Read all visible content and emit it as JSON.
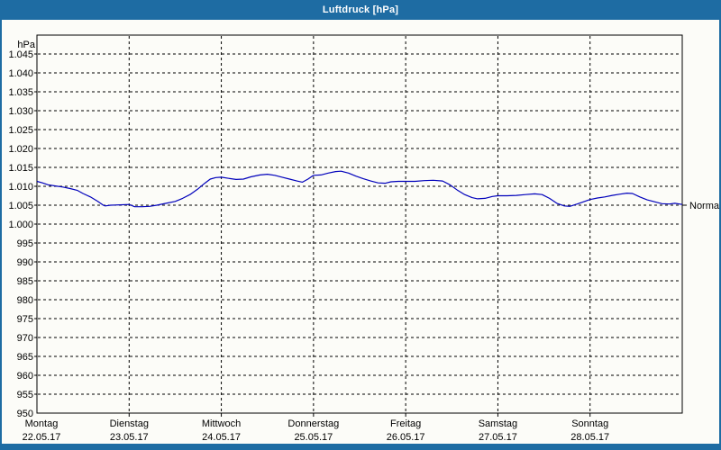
{
  "window": {
    "title": "Luftdruck [hPa]",
    "titlebar_color": "#1e6ca3",
    "border_color": "#1e6ca3",
    "content_background": "#fcfcf8"
  },
  "chart_data": {
    "type": "line",
    "title": "Luftdruck [hPa]",
    "unit_label": "hPa",
    "grid": "dashed",
    "ylim": [
      950,
      1050
    ],
    "ytick_step": 5,
    "yticks": [
      {
        "v": 1045,
        "label": "1.045"
      },
      {
        "v": 1040,
        "label": "1.040"
      },
      {
        "v": 1035,
        "label": "1.035"
      },
      {
        "v": 1030,
        "label": "1.030"
      },
      {
        "v": 1025,
        "label": "1.025"
      },
      {
        "v": 1020,
        "label": "1.020"
      },
      {
        "v": 1015,
        "label": "1.015"
      },
      {
        "v": 1010,
        "label": "1.010"
      },
      {
        "v": 1005,
        "label": "1.005"
      },
      {
        "v": 1000,
        "label": "1.000"
      },
      {
        "v": 995,
        "label": "995"
      },
      {
        "v": 990,
        "label": "990"
      },
      {
        "v": 985,
        "label": "985"
      },
      {
        "v": 980,
        "label": "980"
      },
      {
        "v": 975,
        "label": "975"
      },
      {
        "v": 970,
        "label": "970"
      },
      {
        "v": 965,
        "label": "965"
      },
      {
        "v": 960,
        "label": "960"
      },
      {
        "v": 955,
        "label": "955"
      },
      {
        "v": 950,
        "label": "950"
      }
    ],
    "x_days": [
      {
        "weekday": "Montag",
        "date": "22.05.17"
      },
      {
        "weekday": "Dienstag",
        "date": "23.05.17"
      },
      {
        "weekday": "Mittwoch",
        "date": "24.05.17"
      },
      {
        "weekday": "Donnerstag",
        "date": "25.05.17"
      },
      {
        "weekday": "Freitag",
        "date": "26.05.17"
      },
      {
        "weekday": "Samstag",
        "date": "27.05.17"
      },
      {
        "weekday": "Sonntag",
        "date": "28.05.17"
      }
    ],
    "annotation": {
      "label": "Normal",
      "value": 1005
    },
    "series": [
      {
        "name": "Luftdruck",
        "color": "#0000bb",
        "points": [
          [
            0.0,
            1011.3
          ],
          [
            0.06,
            1010.9
          ],
          [
            0.12,
            1010.4
          ],
          [
            0.2,
            1010.1
          ],
          [
            0.28,
            1009.8
          ],
          [
            0.36,
            1009.4
          ],
          [
            0.44,
            1008.9
          ],
          [
            0.5,
            1008.1
          ],
          [
            0.58,
            1007.2
          ],
          [
            0.66,
            1006.0
          ],
          [
            0.72,
            1005.0
          ],
          [
            0.74,
            1004.8
          ],
          [
            0.8,
            1005.0
          ],
          [
            0.9,
            1005.1
          ],
          [
            1.0,
            1005.2
          ],
          [
            1.06,
            1004.6
          ],
          [
            1.14,
            1004.6
          ],
          [
            1.22,
            1004.7
          ],
          [
            1.3,
            1005.0
          ],
          [
            1.4,
            1005.5
          ],
          [
            1.5,
            1006.0
          ],
          [
            1.58,
            1006.8
          ],
          [
            1.66,
            1007.8
          ],
          [
            1.74,
            1009.2
          ],
          [
            1.82,
            1010.8
          ],
          [
            1.88,
            1011.9
          ],
          [
            1.94,
            1012.3
          ],
          [
            2.0,
            1012.4
          ],
          [
            2.08,
            1012.1
          ],
          [
            2.16,
            1011.8
          ],
          [
            2.24,
            1011.9
          ],
          [
            2.32,
            1012.5
          ],
          [
            2.42,
            1013.0
          ],
          [
            2.5,
            1013.2
          ],
          [
            2.58,
            1012.9
          ],
          [
            2.66,
            1012.4
          ],
          [
            2.74,
            1011.9
          ],
          [
            2.82,
            1011.4
          ],
          [
            2.88,
            1011.1
          ],
          [
            2.94,
            1011.9
          ],
          [
            3.0,
            1012.9
          ],
          [
            3.08,
            1013.0
          ],
          [
            3.16,
            1013.5
          ],
          [
            3.24,
            1013.9
          ],
          [
            3.3,
            1014.0
          ],
          [
            3.38,
            1013.5
          ],
          [
            3.46,
            1012.7
          ],
          [
            3.54,
            1012.0
          ],
          [
            3.62,
            1011.4
          ],
          [
            3.7,
            1010.9
          ],
          [
            3.78,
            1010.8
          ],
          [
            3.84,
            1011.2
          ],
          [
            3.92,
            1011.3
          ],
          [
            4.0,
            1011.3
          ],
          [
            4.1,
            1011.3
          ],
          [
            4.2,
            1011.5
          ],
          [
            4.3,
            1011.6
          ],
          [
            4.4,
            1011.4
          ],
          [
            4.48,
            1010.4
          ],
          [
            4.56,
            1009.0
          ],
          [
            4.64,
            1007.8
          ],
          [
            4.72,
            1007.0
          ],
          [
            4.78,
            1006.7
          ],
          [
            4.86,
            1006.8
          ],
          [
            4.94,
            1007.3
          ],
          [
            5.0,
            1007.5
          ],
          [
            5.1,
            1007.5
          ],
          [
            5.2,
            1007.6
          ],
          [
            5.3,
            1007.8
          ],
          [
            5.4,
            1008.0
          ],
          [
            5.48,
            1007.8
          ],
          [
            5.56,
            1006.8
          ],
          [
            5.64,
            1005.5
          ],
          [
            5.72,
            1004.8
          ],
          [
            5.78,
            1004.7
          ],
          [
            5.86,
            1005.3
          ],
          [
            5.94,
            1006.0
          ],
          [
            6.0,
            1006.5
          ],
          [
            6.08,
            1006.9
          ],
          [
            6.16,
            1007.2
          ],
          [
            6.24,
            1007.6
          ],
          [
            6.32,
            1007.9
          ],
          [
            6.4,
            1008.2
          ],
          [
            6.46,
            1008.1
          ],
          [
            6.54,
            1007.2
          ],
          [
            6.62,
            1006.4
          ],
          [
            6.7,
            1005.9
          ],
          [
            6.78,
            1005.4
          ],
          [
            6.86,
            1005.3
          ],
          [
            6.92,
            1005.5
          ],
          [
            7.0,
            1005.2
          ]
        ]
      }
    ]
  }
}
